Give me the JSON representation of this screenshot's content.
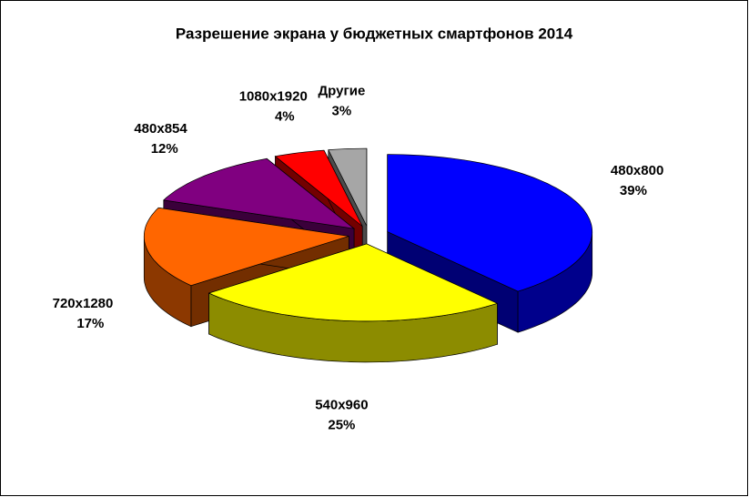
{
  "chart_data": {
    "type": "pie3d",
    "title": "Разрешение экрана у бюджетных смартфонов 2014",
    "categories": [
      "480x800",
      "540x960",
      "720x1280",
      "480x854",
      "1080x1920",
      "Другие"
    ],
    "values": [
      39,
      25,
      17,
      12,
      4,
      3
    ],
    "value_labels": [
      "39%",
      "25%",
      "17%",
      "12%",
      "4%",
      "3%"
    ],
    "colors": [
      "#0000ff",
      "#ffff00",
      "#ff6600",
      "#800080",
      "#ff0000",
      "#a6a6a6"
    ],
    "explode": true
  }
}
